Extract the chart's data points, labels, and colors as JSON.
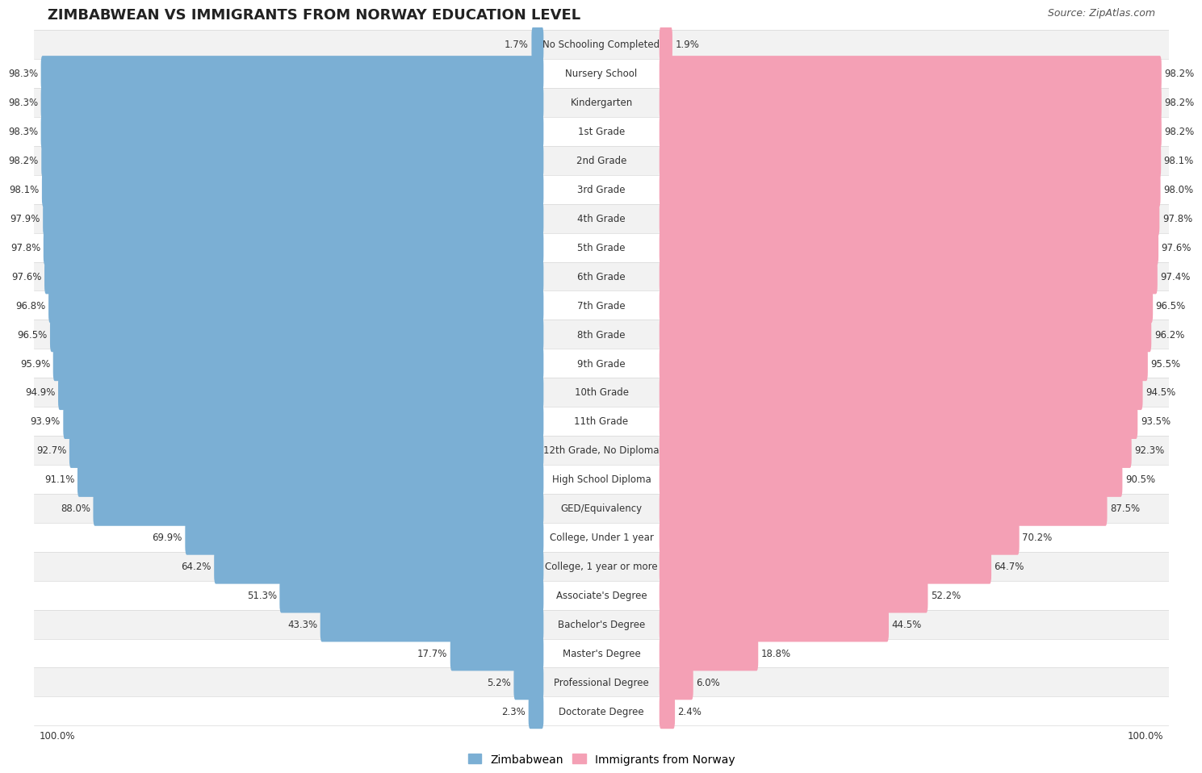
{
  "title": "ZIMBABWEAN VS IMMIGRANTS FROM NORWAY EDUCATION LEVEL",
  "source": "Source: ZipAtlas.com",
  "categories": [
    "No Schooling Completed",
    "Nursery School",
    "Kindergarten",
    "1st Grade",
    "2nd Grade",
    "3rd Grade",
    "4th Grade",
    "5th Grade",
    "6th Grade",
    "7th Grade",
    "8th Grade",
    "9th Grade",
    "10th Grade",
    "11th Grade",
    "12th Grade, No Diploma",
    "High School Diploma",
    "GED/Equivalency",
    "College, Under 1 year",
    "College, 1 year or more",
    "Associate's Degree",
    "Bachelor's Degree",
    "Master's Degree",
    "Professional Degree",
    "Doctorate Degree"
  ],
  "zimbabwean": [
    1.7,
    98.3,
    98.3,
    98.3,
    98.2,
    98.1,
    97.9,
    97.8,
    97.6,
    96.8,
    96.5,
    95.9,
    94.9,
    93.9,
    92.7,
    91.1,
    88.0,
    69.9,
    64.2,
    51.3,
    43.3,
    17.7,
    5.2,
    2.3
  ],
  "norway": [
    1.9,
    98.2,
    98.2,
    98.2,
    98.1,
    98.0,
    97.8,
    97.6,
    97.4,
    96.5,
    96.2,
    95.5,
    94.5,
    93.5,
    92.3,
    90.5,
    87.5,
    70.2,
    64.7,
    52.2,
    44.5,
    18.8,
    6.0,
    2.4
  ],
  "blue_color": "#7bafd4",
  "pink_color": "#f4a0b5",
  "label_fontsize": 8.5,
  "value_fontsize": 8.5,
  "title_fontsize": 13,
  "row_bg_colors": [
    "#f2f2f2",
    "#ffffff"
  ]
}
